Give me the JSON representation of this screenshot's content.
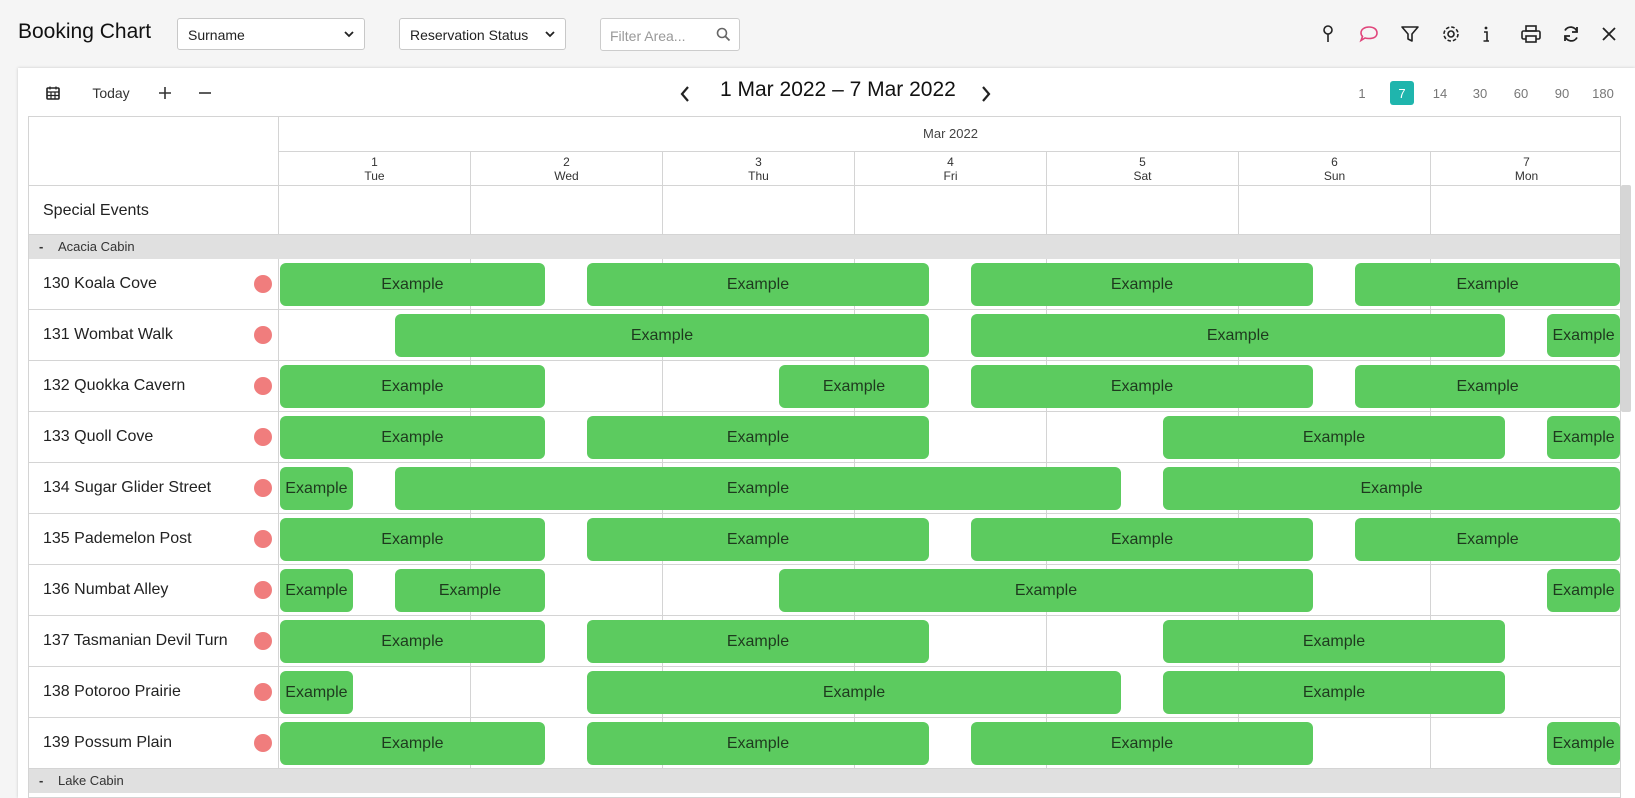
{
  "header": {
    "title": "Booking Chart",
    "sort_select": "Surname",
    "status_select": "Reservation Status",
    "filter_placeholder": "Filter Area...",
    "icons": [
      "pin-icon",
      "comment-icon",
      "filter-icon",
      "gear-icon",
      "info-icon",
      "print-icon",
      "refresh-icon",
      "close-icon"
    ]
  },
  "toolbar": {
    "today_label": "Today",
    "date_range": "1 Mar 2022 – 7 Mar 2022",
    "spans": [
      "1",
      "7",
      "14",
      "30",
      "60",
      "90",
      "180"
    ],
    "active_span": "7"
  },
  "calendar": {
    "month": "Mar 2022",
    "days": [
      {
        "num": "1",
        "dow": "Tue"
      },
      {
        "num": "2",
        "dow": "Wed"
      },
      {
        "num": "3",
        "dow": "Thu"
      },
      {
        "num": "4",
        "dow": "Fri"
      },
      {
        "num": "5",
        "dow": "Sat"
      },
      {
        "num": "6",
        "dow": "Sun"
      },
      {
        "num": "7",
        "dow": "Mon"
      }
    ],
    "special_events_label": "Special Events"
  },
  "groups": [
    {
      "toggle": "-",
      "name": "Acacia Cabin",
      "rooms": [
        {
          "name": "130 Koala Cove",
          "bookings": [
            {
              "label": "Example",
              "start": 0,
              "end": 1.4
            },
            {
              "label": "Example",
              "start": 1.6,
              "end": 3.4
            },
            {
              "label": "Example",
              "start": 3.6,
              "end": 5.4
            },
            {
              "label": "Example",
              "start": 5.6,
              "end": 7
            }
          ]
        },
        {
          "name": "131 Wombat Walk",
          "bookings": [
            {
              "label": "Example",
              "start": 0.6,
              "end": 3.4
            },
            {
              "label": "Example",
              "start": 3.6,
              "end": 6.4
            },
            {
              "label": "Example",
              "start": 6.6,
              "end": 7
            }
          ]
        },
        {
          "name": "132 Quokka Cavern",
          "bookings": [
            {
              "label": "Example",
              "start": 0,
              "end": 1.4
            },
            {
              "label": "Example",
              "start": 2.6,
              "end": 3.4
            },
            {
              "label": "Example",
              "start": 3.6,
              "end": 5.4
            },
            {
              "label": "Example",
              "start": 5.6,
              "end": 7
            }
          ]
        },
        {
          "name": "133 Quoll Cove",
          "bookings": [
            {
              "label": "Example",
              "start": 0,
              "end": 1.4
            },
            {
              "label": "Example",
              "start": 1.6,
              "end": 3.4
            },
            {
              "label": "Example",
              "start": 4.6,
              "end": 6.4
            },
            {
              "label": "Example",
              "start": 6.6,
              "end": 7
            }
          ]
        },
        {
          "name": "134 Sugar Glider Street",
          "bookings": [
            {
              "label": "Example",
              "start": 0,
              "end": 0.4
            },
            {
              "label": "Example",
              "start": 0.6,
              "end": 4.4
            },
            {
              "label": "Example",
              "start": 4.6,
              "end": 7
            }
          ]
        },
        {
          "name": "135 Pademelon Post",
          "bookings": [
            {
              "label": "Example",
              "start": 0,
              "end": 1.4
            },
            {
              "label": "Example",
              "start": 1.6,
              "end": 3.4
            },
            {
              "label": "Example",
              "start": 3.6,
              "end": 5.4
            },
            {
              "label": "Example",
              "start": 5.6,
              "end": 7
            }
          ]
        },
        {
          "name": "136 Numbat Alley",
          "bookings": [
            {
              "label": "Example",
              "start": 0,
              "end": 0.4
            },
            {
              "label": "Example",
              "start": 0.6,
              "end": 1.4
            },
            {
              "label": "Example",
              "start": 2.6,
              "end": 5.4
            },
            {
              "label": "Example",
              "start": 6.6,
              "end": 7
            }
          ]
        },
        {
          "name": "137 Tasmanian Devil Turn",
          "bookings": [
            {
              "label": "Example",
              "start": 0,
              "end": 1.4
            },
            {
              "label": "Example",
              "start": 1.6,
              "end": 3.4
            },
            {
              "label": "Example",
              "start": 4.6,
              "end": 6.4
            }
          ]
        },
        {
          "name": "138 Potoroo Prairie",
          "bookings": [
            {
              "label": "Example",
              "start": 0,
              "end": 0.4
            },
            {
              "label": "Example",
              "start": 1.6,
              "end": 4.4
            },
            {
              "label": "Example",
              "start": 4.6,
              "end": 6.4
            }
          ]
        },
        {
          "name": "139 Possum Plain",
          "bookings": [
            {
              "label": "Example",
              "start": 0,
              "end": 1.4
            },
            {
              "label": "Example",
              "start": 1.6,
              "end": 3.4
            },
            {
              "label": "Example",
              "start": 3.6,
              "end": 5.4
            },
            {
              "label": "Example",
              "start": 6.6,
              "end": 7
            }
          ]
        }
      ]
    },
    {
      "toggle": "-",
      "name": "Lake Cabin",
      "rooms": []
    }
  ],
  "colors": {
    "booking": "#5ccb5f",
    "status_dot": "#f07d7d",
    "accent": "#1fb5ad",
    "group_bg": "#e0e0e0"
  }
}
